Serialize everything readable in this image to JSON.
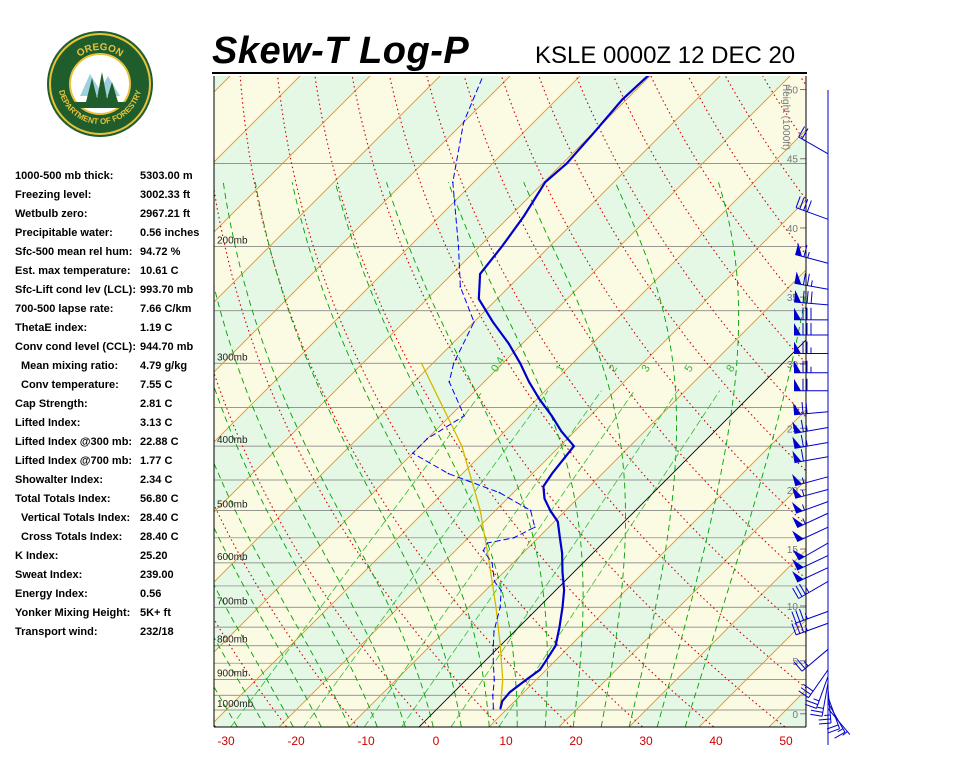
{
  "header": {
    "title": "Skew-T Log-P",
    "station_time": "KSLE 0000Z 12 DEC 20"
  },
  "logo": {
    "top_text": "OREGON",
    "bottom_text": "DEPARTMENT OF FORESTRY"
  },
  "indices": [
    {
      "label": "1000-500 mb thick:",
      "value": "5303.00 m",
      "indent": false
    },
    {
      "label": "Freezing level:",
      "value": "3002.33 ft",
      "indent": false
    },
    {
      "label": "Wetbulb zero:",
      "value": "2967.21 ft",
      "indent": false
    },
    {
      "label": "Precipitable water:",
      "value": "0.56 inches",
      "indent": false
    },
    {
      "label": "Sfc-500 mean rel hum:",
      "value": "94.72 %",
      "indent": false
    },
    {
      "label": "Est. max temperature:",
      "value": "10.61 C",
      "indent": false
    },
    {
      "label": "Sfc-Lift cond lev (LCL):",
      "value": "993.70 mb",
      "indent": false
    },
    {
      "label": "700-500 lapse rate:",
      "value": "7.66 C/km",
      "indent": false
    },
    {
      "label": "ThetaE index:",
      "value": "1.19 C",
      "indent": false
    },
    {
      "label": "Conv cond level (CCL):",
      "value": "944.70 mb",
      "indent": false
    },
    {
      "label": "Mean mixing ratio:",
      "value": "4.79 g/kg",
      "indent": true
    },
    {
      "label": "Conv temperature:",
      "value": "7.55 C",
      "indent": true
    },
    {
      "label": "Cap Strength:",
      "value": "2.81 C",
      "indent": false
    },
    {
      "label": "Lifted Index:",
      "value": "3.13 C",
      "indent": false
    },
    {
      "label": "Lifted Index @300 mb:",
      "value": "22.88 C",
      "indent": false
    },
    {
      "label": "Lifted Index @700 mb:",
      "value": "1.77 C",
      "indent": false
    },
    {
      "label": "Showalter Index:",
      "value": "2.34 C",
      "indent": false
    },
    {
      "label": "Total Totals Index:",
      "value": "56.80 C",
      "indent": false
    },
    {
      "label": "Vertical Totals Index:",
      "value": "28.40 C",
      "indent": true
    },
    {
      "label": "Cross Totals Index:",
      "value": "28.40 C",
      "indent": true
    },
    {
      "label": "K Index:",
      "value": "25.20",
      "indent": false
    },
    {
      "label": "Sweat Index:",
      "value": "239.00",
      "indent": false
    },
    {
      "label": "Energy Index:",
      "value": "0.56",
      "indent": false
    },
    {
      "label": "Yonker Mixing Height:",
      "value": "5K+ ft",
      "indent": false
    },
    {
      "label": "Transport wind:",
      "value": "232/18",
      "indent": false
    }
  ],
  "chart_data": {
    "type": "line",
    "title": "Skew-T Log-P",
    "xlabel": "",
    "ylabel": "",
    "x_scale": "skewed temperature (C)",
    "y_scale": "log pressure (mb)",
    "xlim": [
      -30,
      50
    ],
    "ylim_mb": [
      1050,
      100
    ],
    "x_ticks": [
      -30,
      -20,
      -10,
      0,
      10,
      20,
      30,
      40,
      50
    ],
    "pressure_ticks": [
      {
        "p": 1000,
        "label": "1000mb"
      },
      {
        "p": 900,
        "label": "900mb"
      },
      {
        "p": 800,
        "label": "800mb"
      },
      {
        "p": 700,
        "label": "700mb"
      },
      {
        "p": 600,
        "label": "600mb"
      },
      {
        "p": 500,
        "label": "500mb"
      },
      {
        "p": 400,
        "label": "400mb"
      },
      {
        "p": 300,
        "label": "300mb"
      },
      {
        "p": 200,
        "label": "200mb"
      }
    ],
    "height_axis": {
      "title": "Height (1000ft)",
      "ticks": [
        0,
        5,
        10,
        15,
        20,
        25,
        30,
        35,
        40,
        45,
        50
      ]
    },
    "mixing_ratio_labels": [
      "0.4",
      "1",
      "2",
      "3",
      "5",
      "8"
    ],
    "mixing_ratio_values": [
      0.4,
      1,
      2,
      3,
      5,
      8
    ],
    "grid": true,
    "colors": {
      "temperature": "#0000cc",
      "dewpoint": "#0000ff",
      "parcel": "#d4b800",
      "isotherm": "#ff8a00",
      "dry_adiabat": "#cc0000",
      "moist_adiabat": "#00a000",
      "mixing_ratio": "#33bb33",
      "band_light": "#fbfbe4",
      "band_green": "#e5f8e5",
      "wind_barb": "#0000cc",
      "isobar": "#777777"
    },
    "series": [
      {
        "key": "temperature",
        "points": [
          {
            "p": 995,
            "t": 9.0
          },
          {
            "p": 970,
            "t": 8.2
          },
          {
            "p": 940,
            "t": 8.0
          },
          {
            "p": 905,
            "t": 8.5
          },
          {
            "p": 870,
            "t": 9.1
          },
          {
            "p": 850,
            "t": 8.8
          },
          {
            "p": 800,
            "t": 7.9
          },
          {
            "p": 750,
            "t": 5.8
          },
          {
            "p": 700,
            "t": 3.4
          },
          {
            "p": 660,
            "t": 1.2
          },
          {
            "p": 620,
            "t": -1.6
          },
          {
            "p": 580,
            "t": -4.4
          },
          {
            "p": 550,
            "t": -6.9
          },
          {
            "p": 520,
            "t": -9.5
          },
          {
            "p": 500,
            "t": -12.2
          },
          {
            "p": 480,
            "t": -14.7
          },
          {
            "p": 460,
            "t": -16.6
          },
          {
            "p": 440,
            "t": -17.2
          },
          {
            "p": 400,
            "t": -18.0
          },
          {
            "p": 380,
            "t": -21.9
          },
          {
            "p": 360,
            "t": -25.5
          },
          {
            "p": 340,
            "t": -29.6
          },
          {
            "p": 320,
            "t": -33.6
          },
          {
            "p": 300,
            "t": -37.5
          },
          {
            "p": 280,
            "t": -42.0
          },
          {
            "p": 260,
            "t": -47.3
          },
          {
            "p": 240,
            "t": -52.6
          },
          {
            "p": 220,
            "t": -56.0
          },
          {
            "p": 200,
            "t": -56.8
          },
          {
            "p": 180,
            "t": -58.0
          },
          {
            "p": 160,
            "t": -59.8
          },
          {
            "p": 150,
            "t": -59.4
          },
          {
            "p": 135,
            "t": -59.9
          },
          {
            "p": 120,
            "t": -60.6
          },
          {
            "p": 110,
            "t": -60.3
          }
        ]
      },
      {
        "key": "dewpoint",
        "points": [
          {
            "p": 995,
            "t": 8.0
          },
          {
            "p": 950,
            "t": 6.0
          },
          {
            "p": 900,
            "t": 4.0
          },
          {
            "p": 850,
            "t": 1.5
          },
          {
            "p": 800,
            "t": -1.0
          },
          {
            "p": 760,
            "t": -3.0
          },
          {
            "p": 700,
            "t": -5.5
          },
          {
            "p": 660,
            "t": -7.8
          },
          {
            "p": 640,
            "t": -10.0
          },
          {
            "p": 600,
            "t": -13.0
          },
          {
            "p": 575,
            "t": -16.0
          },
          {
            "p": 560,
            "t": -16.5
          },
          {
            "p": 550,
            "t": -13.5
          },
          {
            "p": 530,
            "t": -12.0
          },
          {
            "p": 500,
            "t": -15.0
          },
          {
            "p": 470,
            "t": -22.0
          },
          {
            "p": 440,
            "t": -32.0
          },
          {
            "p": 410,
            "t": -40.0
          },
          {
            "p": 390,
            "t": -40.0
          },
          {
            "p": 360,
            "t": -38.0
          },
          {
            "p": 320,
            "t": -45.0
          },
          {
            "p": 300,
            "t": -47.0
          },
          {
            "p": 260,
            "t": -50.0
          },
          {
            "p": 230,
            "t": -57.0
          },
          {
            "p": 200,
            "t": -63.0
          },
          {
            "p": 160,
            "t": -73.0
          },
          {
            "p": 130,
            "t": -80.0
          },
          {
            "p": 110,
            "t": -84.0
          }
        ]
      },
      {
        "key": "parcel",
        "points": [
          {
            "p": 995,
            "t": 9.0
          },
          {
            "p": 900,
            "t": 5.2
          },
          {
            "p": 800,
            "t": 0.0
          },
          {
            "p": 700,
            "t": -6.1
          },
          {
            "p": 600,
            "t": -13.4
          },
          {
            "p": 500,
            "t": -22.2
          },
          {
            "p": 400,
            "t": -34.0
          },
          {
            "p": 300,
            "t": -51.6
          }
        ]
      }
    ],
    "wind_barbs": [
      {
        "p": 995,
        "dir": 140,
        "spd": 5
      },
      {
        "p": 975,
        "dir": 150,
        "spd": 15
      },
      {
        "p": 955,
        "dir": 160,
        "spd": 20
      },
      {
        "p": 930,
        "dir": 175,
        "spd": 25
      },
      {
        "p": 910,
        "dir": 190,
        "spd": 25
      },
      {
        "p": 890,
        "dir": 200,
        "spd": 25
      },
      {
        "p": 870,
        "dir": 215,
        "spd": 30
      },
      {
        "p": 810,
        "dir": 230,
        "spd": 25
      },
      {
        "p": 740,
        "dir": 250,
        "spd": 35
      },
      {
        "p": 710,
        "dir": 250,
        "spd": 35
      },
      {
        "p": 640,
        "dir": 240,
        "spd": 35
      },
      {
        "p": 610,
        "dir": 245,
        "spd": 50
      },
      {
        "p": 585,
        "dir": 245,
        "spd": 50
      },
      {
        "p": 560,
        "dir": 240,
        "spd": 50
      },
      {
        "p": 530,
        "dir": 245,
        "spd": 50
      },
      {
        "p": 505,
        "dir": 245,
        "spd": 55
      },
      {
        "p": 485,
        "dir": 250,
        "spd": 55
      },
      {
        "p": 465,
        "dir": 255,
        "spd": 55
      },
      {
        "p": 445,
        "dir": 255,
        "spd": 55
      },
      {
        "p": 415,
        "dir": 260,
        "spd": 60
      },
      {
        "p": 395,
        "dir": 260,
        "spd": 65
      },
      {
        "p": 375,
        "dir": 260,
        "spd": 65
      },
      {
        "p": 355,
        "dir": 265,
        "spd": 70
      },
      {
        "p": 330,
        "dir": 270,
        "spd": 70
      },
      {
        "p": 310,
        "dir": 270,
        "spd": 75
      },
      {
        "p": 290,
        "dir": 270,
        "spd": 75
      },
      {
        "p": 272,
        "dir": 270,
        "spd": 80
      },
      {
        "p": 258,
        "dir": 270,
        "spd": 80
      },
      {
        "p": 245,
        "dir": 275,
        "spd": 80
      },
      {
        "p": 232,
        "dir": 280,
        "spd": 75
      },
      {
        "p": 212,
        "dir": 285,
        "spd": 65
      },
      {
        "p": 182,
        "dir": 290,
        "spd": 40
      },
      {
        "p": 145,
        "dir": 300,
        "spd": 20
      }
    ]
  }
}
